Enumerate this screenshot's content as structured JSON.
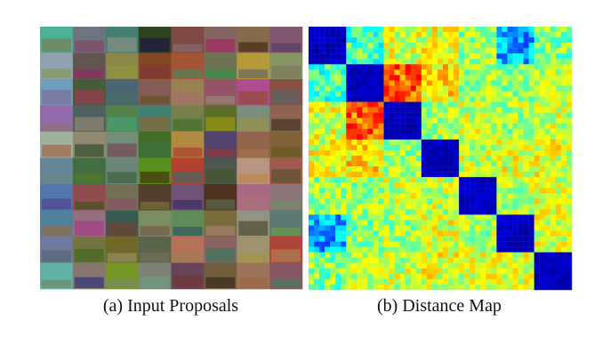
{
  "figure": {
    "panels": [
      {
        "caption": "(a) Input Proposals"
      },
      {
        "caption": "(b) Distance Map"
      }
    ]
  }
}
